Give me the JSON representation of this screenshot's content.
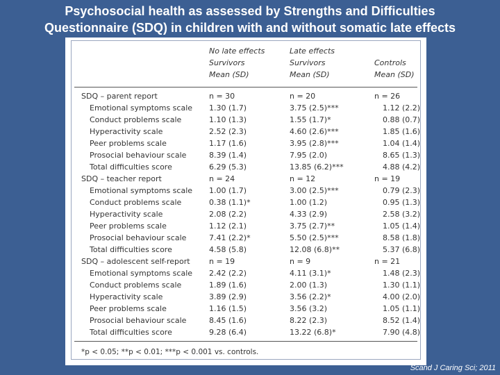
{
  "title_line1": "Psychosocial health as assessed by Strengths and Difficulties",
  "title_line2": "Questionnaire (SDQ) in children with and without somatic late effects",
  "headers": [
    [
      "No late effects",
      "Survivors",
      "Mean (SD)"
    ],
    [
      "Late effects",
      "Survivors",
      "Mean (SD)"
    ],
    [
      "Controls",
      "Mean (SD)"
    ]
  ],
  "rows": [
    {
      "type": "section",
      "label": "SDQ – parent report",
      "v1": "n = 30",
      "v2": "n = 20",
      "v3": "n = 26"
    },
    {
      "type": "sub",
      "label": "Emotional symptoms scale",
      "v1": "1.30 (1.7)",
      "v2": "3.75 (2.5)***",
      "v3": "1.12 (2.2)"
    },
    {
      "type": "sub",
      "label": "Conduct problems scale",
      "v1": "1.10 (1.3)",
      "v2": "1.55 (1.7)*",
      "v3": "0.88 (0.7)"
    },
    {
      "type": "sub",
      "label": "Hyperactivity scale",
      "v1": "2.52 (2.3)",
      "v2": "4.60 (2.6)***",
      "v3": "1.85 (1.6)"
    },
    {
      "type": "sub",
      "label": "Peer problems scale",
      "v1": "1.17 (1.6)",
      "v2": "3.95 (2.8)***",
      "v3": "1.04 (1.4)"
    },
    {
      "type": "sub",
      "label": "Prosocial behaviour scale",
      "v1": "8.39 (1.4)",
      "v2": "7.95 (2.0)",
      "v3": "8.65 (1.3)"
    },
    {
      "type": "sub",
      "label": "Total difficulties score",
      "v1": "6.29 (5.3)",
      "v2": "13.85 (6.2)***",
      "v3": "4.88 (4.2)"
    },
    {
      "type": "section",
      "label": "SDQ – teacher report",
      "v1": "n = 24",
      "v2": "n = 12",
      "v3": "n = 19"
    },
    {
      "type": "sub",
      "label": "Emotional symptoms scale",
      "v1": "1.00 (1.7)",
      "v2": "3.00 (2.5)***",
      "v3": "0.79 (2.3)"
    },
    {
      "type": "sub",
      "label": "Conduct problems scale",
      "v1": "0.38 (1.1)*",
      "v2": "1.00 (1.2)",
      "v3": "0.95 (1.3)"
    },
    {
      "type": "sub",
      "label": "Hyperactivity scale",
      "v1": "2.08 (2.2)",
      "v2": "4.33 (2.9)",
      "v3": "2.58 (3.2)"
    },
    {
      "type": "sub",
      "label": "Peer problems scale",
      "v1": "1.12 (2.1)",
      "v2": "3.75 (2.7)**",
      "v3": "1.05 (1.4)"
    },
    {
      "type": "sub",
      "label": "Prosocial behaviour scale",
      "v1": "7.41 (2.2)*",
      "v2": "5.50 (2.5)***",
      "v3": "8.58 (1.8)"
    },
    {
      "type": "sub",
      "label": "Total difficulties score",
      "v1": "4.58 (5.8)",
      "v2": "12.08 (6.8)**",
      "v3": "5.37 (6.8)"
    },
    {
      "type": "section",
      "label": "SDQ – adolescent self-report",
      "v1": "n = 19",
      "v2": "n = 9",
      "v3": "n = 21"
    },
    {
      "type": "sub",
      "label": "Emotional symptoms scale",
      "v1": "2.42 (2.2)",
      "v2": "4.11 (3.1)*",
      "v3": "1.48 (2.3)"
    },
    {
      "type": "sub",
      "label": "Conduct problems scale",
      "v1": "1.89 (1.6)",
      "v2": "2.00 (1.3)",
      "v3": "1.30 (1.1)"
    },
    {
      "type": "sub",
      "label": "Hyperactivity scale",
      "v1": "3.89 (2.9)",
      "v2": "3.56 (2.2)*",
      "v3": "4.00 (2.0)"
    },
    {
      "type": "sub",
      "label": "Peer problems scale",
      "v1": "1.16 (1.5)",
      "v2": "3.56 (3.2)",
      "v3": "1.05 (1.1)"
    },
    {
      "type": "sub",
      "label": "Prosocial behaviour scale",
      "v1": "8.45 (1.6)",
      "v2": "8.22 (2.3)",
      "v3": "8.52 (1.4)"
    },
    {
      "type": "sub",
      "label": "Total difficulties score",
      "v1": "9.28 (6.4)",
      "v2": "13.22 (6.8)*",
      "v3": "7.90 (4.8)"
    }
  ],
  "footnote": "*p < 0.05; **p < 0.01; ***p < 0.001 vs. controls.",
  "citation": "Scand J Caring Sci; 2011"
}
